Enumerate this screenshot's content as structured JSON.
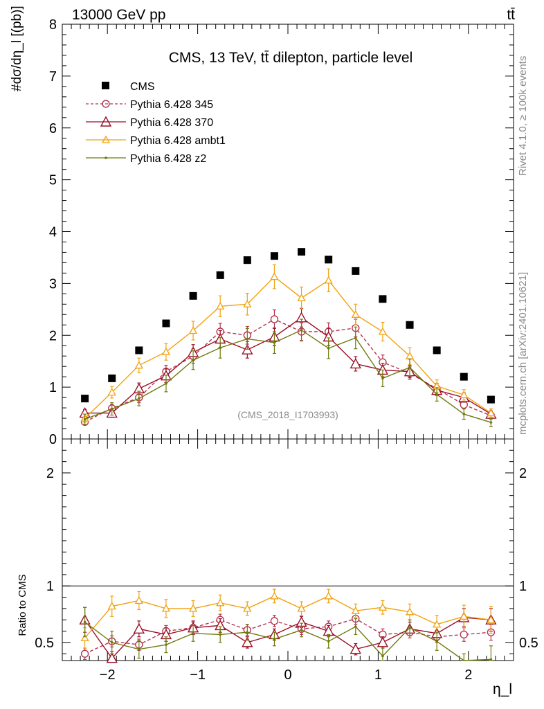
{
  "header": {
    "energy_label": "13000 GeV pp",
    "process_label": "tt̄",
    "rivet_label": "Rivet 4.1.0, ≥ 100k events",
    "mcplots_label": "mcplots.cern.ch [arXiv:2401.10621]"
  },
  "chart_data": [
    {
      "type": "scatter",
      "panel": "main",
      "title": "CMS, 13 TeV, tt̄ dilepton, particle level",
      "analysis_label": "(CMS_2018_I1703993)",
      "ylabel": "#dσ/dη_l [(pb)]",
      "xlabel": "η_l",
      "xlim": [
        -2.5,
        2.5
      ],
      "ylim": [
        0,
        8
      ],
      "y_ticks": [
        "0",
        "1",
        "2",
        "3",
        "4",
        "5",
        "6",
        "7",
        "8"
      ],
      "x": [
        -2.25,
        -1.95,
        -1.65,
        -1.35,
        -1.05,
        -0.75,
        -0.45,
        -0.15,
        0.15,
        0.45,
        0.75,
        1.05,
        1.35,
        1.65,
        1.95,
        2.25
      ],
      "series": [
        {
          "name": "CMS",
          "color": "#000000",
          "style": "square",
          "values": [
            0.78,
            1.17,
            1.71,
            2.23,
            2.76,
            3.16,
            3.45,
            3.53,
            3.61,
            3.46,
            3.24,
            2.7,
            2.2,
            1.71,
            1.2,
            0.76
          ],
          "errors": [
            0,
            0,
            0,
            0,
            0,
            0,
            0,
            0,
            0,
            0,
            0,
            0,
            0,
            0,
            0,
            0
          ]
        },
        {
          "name": "Pythia 6.428 345",
          "color": "#b4354f",
          "style": "circle-dashed",
          "values": [
            0.33,
            0.59,
            0.8,
            1.3,
            1.6,
            2.07,
            2.0,
            2.31,
            2.07,
            2.07,
            2.14,
            1.48,
            1.27,
            0.97,
            0.66,
            0.45
          ],
          "errors": [
            0.06,
            0.08,
            0.1,
            0.12,
            0.14,
            0.16,
            0.17,
            0.18,
            0.17,
            0.17,
            0.17,
            0.14,
            0.12,
            0.1,
            0.08,
            0.06
          ]
        },
        {
          "name": "Pythia 6.428 370",
          "color": "#9a0e26",
          "style": "triangle",
          "values": [
            0.5,
            0.5,
            0.97,
            1.22,
            1.67,
            1.93,
            1.72,
            1.97,
            2.34,
            1.97,
            1.45,
            1.33,
            1.3,
            0.94,
            0.8,
            0.48
          ],
          "errors": [
            0.07,
            0.08,
            0.11,
            0.13,
            0.15,
            0.16,
            0.16,
            0.17,
            0.18,
            0.17,
            0.14,
            0.13,
            0.12,
            0.1,
            0.09,
            0.06
          ]
        },
        {
          "name": "Pythia 6.428 ambt1",
          "color": "#f2a10c",
          "style": "triangle-small",
          "values": [
            0.4,
            0.9,
            1.42,
            1.68,
            2.09,
            2.56,
            2.6,
            3.13,
            2.72,
            3.06,
            2.4,
            2.07,
            1.6,
            1.02,
            0.85,
            0.5
          ],
          "errors": [
            0.08,
            0.11,
            0.14,
            0.16,
            0.18,
            0.2,
            0.21,
            0.23,
            0.21,
            0.22,
            0.2,
            0.18,
            0.16,
            0.12,
            0.1,
            0.08
          ]
        },
        {
          "name": "Pythia 6.428 z2",
          "color": "#6f7a0b",
          "style": "dot",
          "values": [
            0.38,
            0.58,
            0.78,
            1.07,
            1.52,
            1.76,
            1.93,
            1.86,
            2.1,
            1.75,
            1.95,
            1.17,
            1.38,
            0.86,
            0.48,
            0.32
          ],
          "errors": [
            0.1,
            0.12,
            0.14,
            0.16,
            0.18,
            0.2,
            0.2,
            0.21,
            0.21,
            0.2,
            0.21,
            0.16,
            0.16,
            0.13,
            0.1,
            0.08
          ]
        }
      ]
    },
    {
      "type": "scatter",
      "panel": "ratio",
      "ylabel": "Ratio to CMS",
      "xlabel": "η_l",
      "xlim": [
        -2.5,
        2.5
      ],
      "ylim": [
        0.34,
        2.3
      ],
      "y_ticks": [
        "0.5",
        "1",
        "2"
      ],
      "x_ticks": [
        "−2",
        "−1",
        "0",
        "1",
        "2"
      ],
      "x": [
        -2.25,
        -1.95,
        -1.65,
        -1.35,
        -1.05,
        -0.75,
        -0.45,
        -0.15,
        0.15,
        0.45,
        0.75,
        1.05,
        1.35,
        1.65,
        1.95,
        2.25
      ],
      "series": [
        {
          "name": "Pythia 6.428 345",
          "color": "#b4354f",
          "style": "circle-dashed",
          "values": [
            0.4,
            0.51,
            0.48,
            0.6,
            0.63,
            0.7,
            0.61,
            0.69,
            0.62,
            0.64,
            0.71,
            0.57,
            0.59,
            0.55,
            0.57,
            0.59
          ],
          "errors": [
            0.05,
            0.05,
            0.05,
            0.05,
            0.05,
            0.05,
            0.05,
            0.05,
            0.05,
            0.05,
            0.05,
            0.05,
            0.05,
            0.05,
            0.06,
            0.07
          ]
        },
        {
          "name": "Pythia 6.428 370",
          "color": "#9a0e26",
          "style": "triangle",
          "values": [
            0.7,
            0.36,
            0.62,
            0.57,
            0.63,
            0.65,
            0.5,
            0.57,
            0.68,
            0.6,
            0.44,
            0.5,
            0.62,
            0.58,
            0.72,
            0.7
          ],
          "errors": [
            0.11,
            0.06,
            0.07,
            0.06,
            0.06,
            0.06,
            0.05,
            0.05,
            0.05,
            0.05,
            0.05,
            0.05,
            0.06,
            0.06,
            0.08,
            0.1
          ]
        },
        {
          "name": "Pythia 6.428 ambt1",
          "color": "#f2a10c",
          "style": "triangle-small",
          "values": [
            0.54,
            0.82,
            0.87,
            0.8,
            0.8,
            0.85,
            0.8,
            0.91,
            0.8,
            0.91,
            0.78,
            0.81,
            0.77,
            0.66,
            0.73,
            0.7
          ],
          "errors": [
            0.09,
            0.09,
            0.08,
            0.08,
            0.07,
            0.07,
            0.06,
            0.06,
            0.06,
            0.06,
            0.06,
            0.06,
            0.07,
            0.08,
            0.1,
            0.12
          ]
        },
        {
          "name": "Pythia 6.428 z2",
          "color": "#6f7a0b",
          "style": "dot",
          "values": [
            0.68,
            0.5,
            0.44,
            0.48,
            0.58,
            0.57,
            0.59,
            0.53,
            0.61,
            0.51,
            0.64,
            0.38,
            0.63,
            0.51,
            0.31,
            0.35
          ],
          "errors": [
            0.13,
            0.1,
            0.08,
            0.07,
            0.07,
            0.07,
            0.07,
            0.06,
            0.06,
            0.06,
            0.07,
            0.07,
            0.07,
            0.08,
            0.09,
            0.12
          ]
        }
      ]
    }
  ]
}
